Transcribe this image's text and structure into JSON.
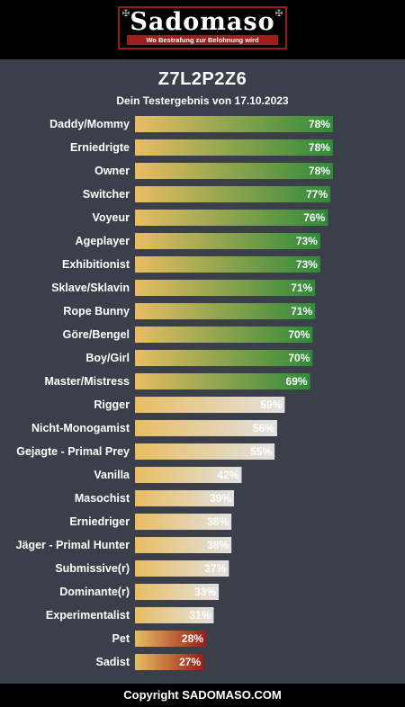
{
  "header": {
    "logo_text": "Sadomaso",
    "logo_tagline": "Wo Bestrafung zur Belohnung wird"
  },
  "footer": {
    "copyright": "Copyright SADOMASO.COM"
  },
  "colors": {
    "bar_start": "#e9bd62",
    "high_end": "#2f8a3a",
    "mid_end": "#e2e2e2",
    "low_end": "#9b1c18"
  },
  "chart_data": {
    "type": "bar",
    "orientation": "horizontal",
    "title": "Z7L2P2Z6",
    "subtitle": "Dein Testergebnis von 17.10.2023",
    "xlim": [
      0,
      100
    ],
    "categories": [
      "Daddy/Mommy",
      "Erniedrigte",
      "Owner",
      "Switcher",
      "Voyeur",
      "Ageplayer",
      "Exhibitionist",
      "Sklave/Sklavin",
      "Rope Bunny",
      "Göre/Bengel",
      "Boy/Girl",
      "Master/Mistress",
      "Rigger",
      "Nicht-Monogamist",
      "Gejagte - Primal Prey",
      "Vanilla",
      "Masochist",
      "Erniedriger",
      "Jäger - Primal Hunter",
      "Submissive(r)",
      "Dominante(r)",
      "Experimentalist",
      "Pet",
      "Sadist"
    ],
    "values": [
      78,
      78,
      78,
      77,
      76,
      73,
      73,
      71,
      71,
      70,
      70,
      69,
      59,
      56,
      55,
      42,
      39,
      38,
      38,
      37,
      33,
      31,
      28,
      27
    ],
    "value_labels": [
      "78%",
      "78%",
      "78%",
      "77%",
      "76%",
      "73%",
      "73%",
      "71%",
      "71%",
      "70%",
      "70%",
      "69%",
      "59%",
      "56%",
      "55%",
      "42%",
      "39%",
      "38%",
      "38%",
      "37%",
      "33%",
      "31%",
      "28%",
      "27%"
    ],
    "tiers": [
      "high",
      "high",
      "high",
      "high",
      "high",
      "high",
      "high",
      "high",
      "high",
      "high",
      "high",
      "high",
      "mid",
      "mid",
      "mid",
      "mid",
      "mid",
      "mid",
      "mid",
      "mid",
      "mid",
      "mid",
      "low",
      "low"
    ]
  }
}
